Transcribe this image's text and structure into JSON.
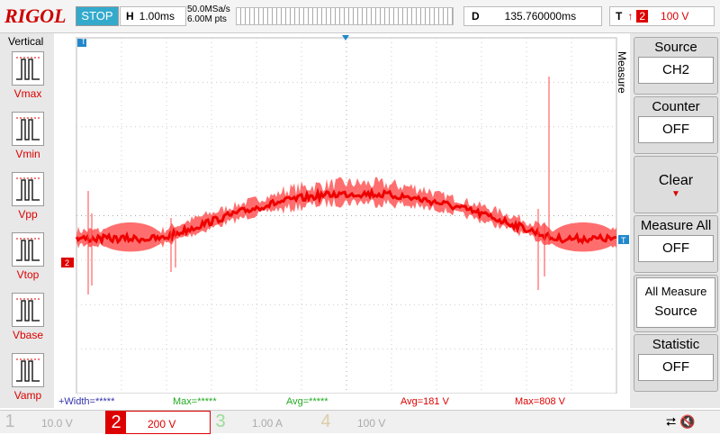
{
  "header": {
    "logo": "RIGOL",
    "status": "STOP",
    "timebase_label": "H",
    "timebase": "1.00ms",
    "sample_rate": "50.0MSa/s",
    "memory_depth": "6.00M pts",
    "delay_label": "D",
    "delay": "135.760000ms",
    "trigger_label": "T",
    "trigger_channel": "2",
    "trigger_level": "100 V"
  },
  "left_menu": {
    "title": "Vertical",
    "items": [
      "Vmax",
      "Vmin",
      "Vpp",
      "Vtop",
      "Vbase",
      "Vamp"
    ]
  },
  "right_menu": {
    "title": "Measure",
    "items": [
      {
        "label": "Source",
        "value": "CH2"
      },
      {
        "label": "Counter",
        "value": "OFF"
      },
      {
        "label": "Clear"
      },
      {
        "label": "Measure All",
        "value": "OFF"
      },
      {
        "label": "All Measure",
        "value": "Source"
      },
      {
        "label": "Statistic",
        "value": "OFF"
      }
    ]
  },
  "measurements": [
    "+Width=*****",
    "Max=*****",
    "Avg=*****",
    "Avg=181 V",
    "Max=808 V"
  ],
  "channels": [
    {
      "number": 1,
      "scale": "10.0 V"
    },
    {
      "number": 2,
      "scale": "200 V"
    },
    {
      "number": 3,
      "scale": "1.00 A"
    },
    {
      "number": 4,
      "scale": "100 V"
    }
  ],
  "markers": {
    "channel": "2",
    "trigger": "T"
  }
}
